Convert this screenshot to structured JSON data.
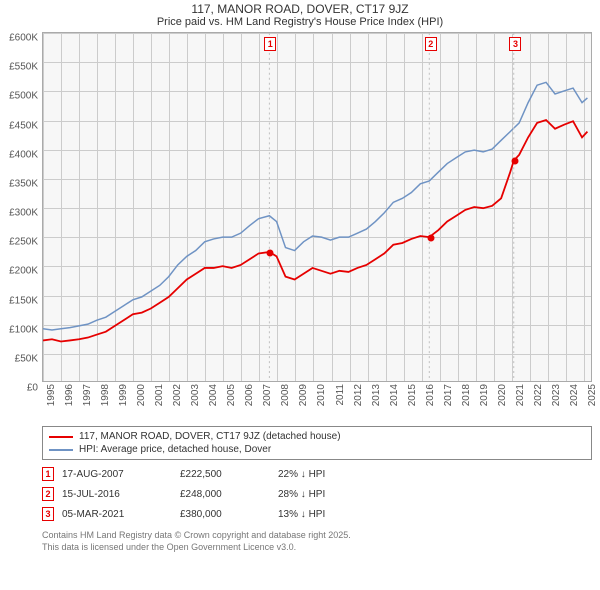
{
  "title": "117, MANOR ROAD, DOVER, CT17 9JZ",
  "subtitle": "Price paid vs. HM Land Registry's House Price Index (HPI)",
  "chart": {
    "type": "line",
    "background_color": "#f7f7f7",
    "grid_color": "#cccccc",
    "border_color": "#aaaaaa",
    "xlim": [
      1995,
      2025.5
    ],
    "ylim": [
      0,
      600000
    ],
    "ytick_step": 50000,
    "yticks": [
      "£0",
      "£50K",
      "£100K",
      "£150K",
      "£200K",
      "£250K",
      "£300K",
      "£350K",
      "£400K",
      "£450K",
      "£500K",
      "£550K",
      "£600K"
    ],
    "xticks": [
      1995,
      1996,
      1997,
      1998,
      1999,
      2000,
      2001,
      2002,
      2003,
      2004,
      2005,
      2006,
      2007,
      2008,
      2009,
      2010,
      2011,
      2012,
      2013,
      2014,
      2015,
      2016,
      2017,
      2018,
      2019,
      2020,
      2021,
      2022,
      2023,
      2024,
      2025
    ],
    "series": [
      {
        "name": "property",
        "label": "117, MANOR ROAD, DOVER, CT17 9JZ (detached house)",
        "color": "#e60000",
        "width": 1.8,
        "points": [
          [
            1995,
            70000
          ],
          [
            1995.5,
            72000
          ],
          [
            1996,
            68000
          ],
          [
            1996.5,
            70000
          ],
          [
            1997,
            72000
          ],
          [
            1997.5,
            75000
          ],
          [
            1998,
            80000
          ],
          [
            1998.5,
            85000
          ],
          [
            1999,
            95000
          ],
          [
            1999.5,
            105000
          ],
          [
            2000,
            115000
          ],
          [
            2000.5,
            118000
          ],
          [
            2001,
            125000
          ],
          [
            2001.5,
            135000
          ],
          [
            2002,
            145000
          ],
          [
            2002.5,
            160000
          ],
          [
            2003,
            175000
          ],
          [
            2003.5,
            185000
          ],
          [
            2004,
            195000
          ],
          [
            2004.5,
            195000
          ],
          [
            2005,
            198000
          ],
          [
            2005.5,
            195000
          ],
          [
            2006,
            200000
          ],
          [
            2006.5,
            210000
          ],
          [
            2007,
            220000
          ],
          [
            2007.6,
            222500
          ],
          [
            2008,
            215000
          ],
          [
            2008.5,
            180000
          ],
          [
            2009,
            175000
          ],
          [
            2009.5,
            185000
          ],
          [
            2010,
            195000
          ],
          [
            2010.5,
            190000
          ],
          [
            2011,
            185000
          ],
          [
            2011.5,
            190000
          ],
          [
            2012,
            188000
          ],
          [
            2012.5,
            195000
          ],
          [
            2013,
            200000
          ],
          [
            2013.5,
            210000
          ],
          [
            2014,
            220000
          ],
          [
            2014.5,
            235000
          ],
          [
            2015,
            238000
          ],
          [
            2015.5,
            245000
          ],
          [
            2016,
            250000
          ],
          [
            2016.5,
            248000
          ],
          [
            2017,
            260000
          ],
          [
            2017.5,
            275000
          ],
          [
            2018,
            285000
          ],
          [
            2018.5,
            295000
          ],
          [
            2019,
            300000
          ],
          [
            2019.5,
            298000
          ],
          [
            2020,
            302000
          ],
          [
            2020.5,
            315000
          ],
          [
            2021,
            360000
          ],
          [
            2021.2,
            380000
          ],
          [
            2021.5,
            390000
          ],
          [
            2022,
            420000
          ],
          [
            2022.5,
            445000
          ],
          [
            2023,
            450000
          ],
          [
            2023.5,
            435000
          ],
          [
            2024,
            442000
          ],
          [
            2024.5,
            448000
          ],
          [
            2025,
            420000
          ],
          [
            2025.3,
            430000
          ]
        ]
      },
      {
        "name": "hpi",
        "label": "HPI: Average price, detached house, Dover",
        "color": "#6f93c4",
        "width": 1.5,
        "points": [
          [
            1995,
            90000
          ],
          [
            1995.5,
            88000
          ],
          [
            1996,
            90000
          ],
          [
            1996.5,
            92000
          ],
          [
            1997,
            95000
          ],
          [
            1997.5,
            98000
          ],
          [
            1998,
            105000
          ],
          [
            1998.5,
            110000
          ],
          [
            1999,
            120000
          ],
          [
            1999.5,
            130000
          ],
          [
            2000,
            140000
          ],
          [
            2000.5,
            145000
          ],
          [
            2001,
            155000
          ],
          [
            2001.5,
            165000
          ],
          [
            2002,
            180000
          ],
          [
            2002.5,
            200000
          ],
          [
            2003,
            215000
          ],
          [
            2003.5,
            225000
          ],
          [
            2004,
            240000
          ],
          [
            2004.5,
            245000
          ],
          [
            2005,
            248000
          ],
          [
            2005.5,
            248000
          ],
          [
            2006,
            255000
          ],
          [
            2006.5,
            268000
          ],
          [
            2007,
            280000
          ],
          [
            2007.6,
            285000
          ],
          [
            2008,
            275000
          ],
          [
            2008.5,
            230000
          ],
          [
            2009,
            225000
          ],
          [
            2009.5,
            240000
          ],
          [
            2010,
            250000
          ],
          [
            2010.5,
            248000
          ],
          [
            2011,
            243000
          ],
          [
            2011.5,
            248000
          ],
          [
            2012,
            248000
          ],
          [
            2012.5,
            255000
          ],
          [
            2013,
            262000
          ],
          [
            2013.5,
            275000
          ],
          [
            2014,
            290000
          ],
          [
            2014.5,
            308000
          ],
          [
            2015,
            315000
          ],
          [
            2015.5,
            325000
          ],
          [
            2016,
            340000
          ],
          [
            2016.5,
            345000
          ],
          [
            2017,
            360000
          ],
          [
            2017.5,
            375000
          ],
          [
            2018,
            385000
          ],
          [
            2018.5,
            395000
          ],
          [
            2019,
            398000
          ],
          [
            2019.5,
            395000
          ],
          [
            2020,
            400000
          ],
          [
            2020.5,
            415000
          ],
          [
            2021,
            430000
          ],
          [
            2021.5,
            445000
          ],
          [
            2022,
            480000
          ],
          [
            2022.5,
            510000
          ],
          [
            2023,
            515000
          ],
          [
            2023.5,
            495000
          ],
          [
            2024,
            500000
          ],
          [
            2024.5,
            505000
          ],
          [
            2025,
            480000
          ],
          [
            2025.3,
            488000
          ]
        ]
      }
    ],
    "sale_markers": [
      {
        "n": "1",
        "x": 2007.6,
        "y": 222500,
        "color": "#e60000"
      },
      {
        "n": "2",
        "x": 2016.5,
        "y": 248000,
        "color": "#e60000"
      },
      {
        "n": "3",
        "x": 2021.2,
        "y": 380000,
        "color": "#e60000"
      }
    ]
  },
  "legend": {
    "items": [
      {
        "color": "#e60000",
        "label": "117, MANOR ROAD, DOVER, CT17 9JZ (detached house)"
      },
      {
        "color": "#6f93c4",
        "label": "HPI: Average price, detached house, Dover"
      }
    ]
  },
  "sales": [
    {
      "n": "1",
      "color": "#e60000",
      "date": "17-AUG-2007",
      "price": "£222,500",
      "delta": "22% ↓ HPI"
    },
    {
      "n": "2",
      "color": "#e60000",
      "date": "15-JUL-2016",
      "price": "£248,000",
      "delta": "28% ↓ HPI"
    },
    {
      "n": "3",
      "color": "#e60000",
      "date": "05-MAR-2021",
      "price": "£380,000",
      "delta": "13% ↓ HPI"
    }
  ],
  "footer": {
    "line1": "Contains HM Land Registry data © Crown copyright and database right 2025.",
    "line2": "This data is licensed under the Open Government Licence v3.0."
  }
}
